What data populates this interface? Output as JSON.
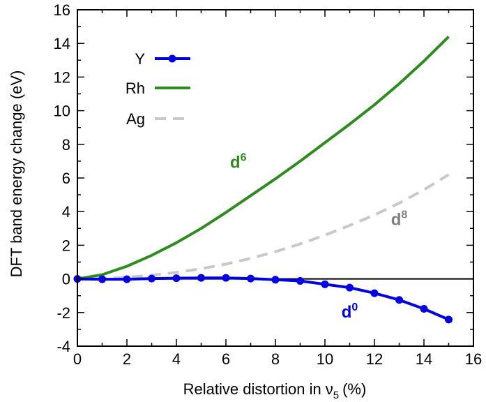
{
  "chart_data": {
    "type": "line",
    "xlabel": "Relative distortion in",
    "xlabel_symbol": "ν",
    "xlabel_subscript": "5",
    "xlabel_unit": "(%)",
    "ylabel": "DFT band energy change (eV)",
    "xlim": [
      0,
      16
    ],
    "ylim": [
      -4,
      16
    ],
    "x_ticks": [
      0,
      2,
      4,
      6,
      8,
      10,
      12,
      14,
      16
    ],
    "y_ticks": [
      -4,
      -2,
      0,
      2,
      4,
      6,
      8,
      10,
      12,
      14,
      16
    ],
    "grid": false,
    "zero_line": true,
    "legend_position": "top-left",
    "series": [
      {
        "name": "Y",
        "color": "#0000e0",
        "style": "line-with-circles",
        "x": [
          0,
          1,
          2,
          3,
          4,
          5,
          6,
          7,
          8,
          9,
          10,
          11,
          12,
          13,
          14,
          15
        ],
        "y": [
          0,
          -0.02,
          -0.02,
          0.02,
          0.04,
          0.06,
          0.06,
          0.02,
          -0.05,
          -0.12,
          -0.32,
          -0.52,
          -0.85,
          -1.25,
          -1.78,
          -2.42
        ]
      },
      {
        "name": "Rh",
        "color": "#2e8b20",
        "style": "solid",
        "x": [
          0,
          1,
          2,
          3,
          4,
          5,
          6,
          7,
          8,
          9,
          10,
          11,
          12,
          13,
          14,
          15
        ],
        "y": [
          0,
          0.25,
          0.75,
          1.4,
          2.15,
          3.0,
          3.95,
          4.95,
          5.95,
          7.0,
          8.1,
          9.2,
          10.35,
          11.6,
          12.95,
          14.4
        ]
      },
      {
        "name": "Ag",
        "color": "#c8c8c8",
        "style": "dashed",
        "x": [
          0,
          1,
          2,
          3,
          4,
          5,
          6,
          7,
          8,
          9,
          10,
          11,
          12,
          13,
          14,
          15
        ],
        "y": [
          0,
          0.03,
          0.1,
          0.22,
          0.38,
          0.6,
          0.88,
          1.22,
          1.62,
          2.08,
          2.6,
          3.18,
          3.8,
          4.5,
          5.3,
          6.2
        ]
      }
    ],
    "annotations": [
      {
        "base": "d",
        "sup": "6",
        "color": "#2e8b20",
        "x": 6.5,
        "y": 6.6
      },
      {
        "base": "d",
        "sup": "8",
        "color": "#808080",
        "x": 13.0,
        "y": 3.2
      },
      {
        "base": "d",
        "sup": "0",
        "color": "#0000e0",
        "x": 11.0,
        "y": -2.3
      }
    ]
  }
}
